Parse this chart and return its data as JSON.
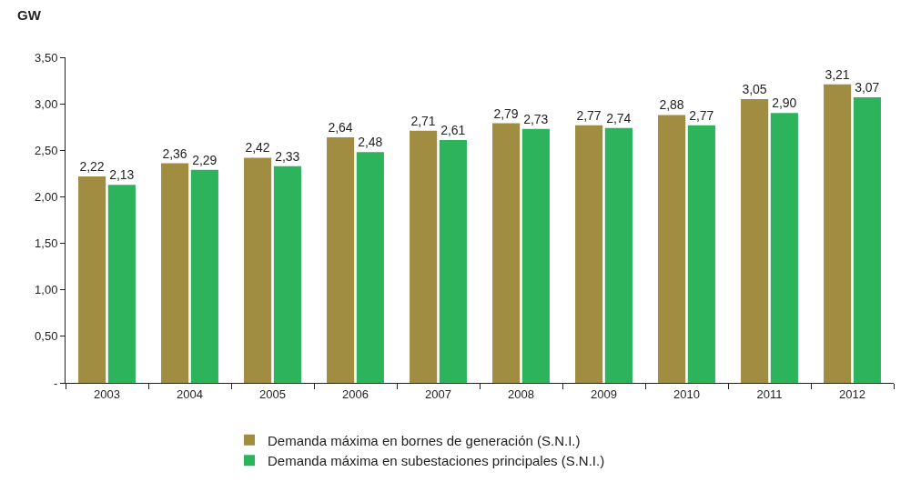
{
  "chart_data": {
    "type": "bar",
    "ylabel": "GW",
    "categories": [
      "2003",
      "2004",
      "2005",
      "2006",
      "2007",
      "2008",
      "2009",
      "2010",
      "2011",
      "2012"
    ],
    "series": [
      {
        "name": "Demanda máxima en bornes de generación (S.N.I.)",
        "color": "#a08d42",
        "values": [
          2.22,
          2.36,
          2.42,
          2.64,
          2.71,
          2.79,
          2.77,
          2.88,
          3.05,
          3.21
        ],
        "value_labels": [
          "2,22",
          "2,36",
          "2,42",
          "2,64",
          "2,71",
          "2,79",
          "2,77",
          "2,88",
          "3,05",
          "3,21"
        ]
      },
      {
        "name": "Demanda máxima en subestaciones principales (S.N.I.)",
        "color": "#2db35c",
        "values": [
          2.13,
          2.29,
          2.33,
          2.48,
          2.61,
          2.73,
          2.74,
          2.77,
          2.9,
          3.07
        ],
        "value_labels": [
          "2,13",
          "2,29",
          "2,33",
          "2,48",
          "2,61",
          "2,73",
          "2,74",
          "2,77",
          "2,90",
          "3,07"
        ]
      }
    ],
    "ylim": [
      0,
      3.5
    ],
    "yticks": [
      {
        "value": 0,
        "label": "-"
      },
      {
        "value": 0.5,
        "label": "0,50"
      },
      {
        "value": 1,
        "label": "1,00"
      },
      {
        "value": 1.5,
        "label": "1,50"
      },
      {
        "value": 2,
        "label": "2,00"
      },
      {
        "value": 2.5,
        "label": "2,50"
      },
      {
        "value": 3,
        "label": "3,00"
      },
      {
        "value": 3.5,
        "label": "3,50"
      }
    ],
    "grid": false,
    "legend": "bottom"
  }
}
